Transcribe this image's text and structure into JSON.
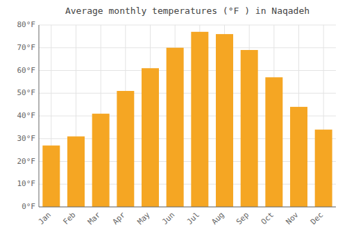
{
  "chart_data": {
    "type": "bar",
    "title": "Average monthly temperatures (°F ) in Naqadeh",
    "categories": [
      "Jan",
      "Feb",
      "Mar",
      "Apr",
      "May",
      "Jun",
      "Jul",
      "Aug",
      "Sep",
      "Oct",
      "Nov",
      "Dec"
    ],
    "values": [
      27,
      31,
      41,
      51,
      61,
      70,
      77,
      76,
      69,
      57,
      44,
      34
    ],
    "color": "#F5A623",
    "ylim": [
      0,
      80
    ],
    "yticks": [
      {
        "value": 0,
        "label": "0°F"
      },
      {
        "value": 10,
        "label": "10°F"
      },
      {
        "value": 20,
        "label": "20°F"
      },
      {
        "value": 30,
        "label": "30°F"
      },
      {
        "value": 40,
        "label": "40°F"
      },
      {
        "value": 50,
        "label": "50°F"
      },
      {
        "value": 60,
        "label": "60°F"
      },
      {
        "value": 70,
        "label": "70°F"
      },
      {
        "value": 80,
        "label": "80°F"
      }
    ],
    "grid": true
  }
}
